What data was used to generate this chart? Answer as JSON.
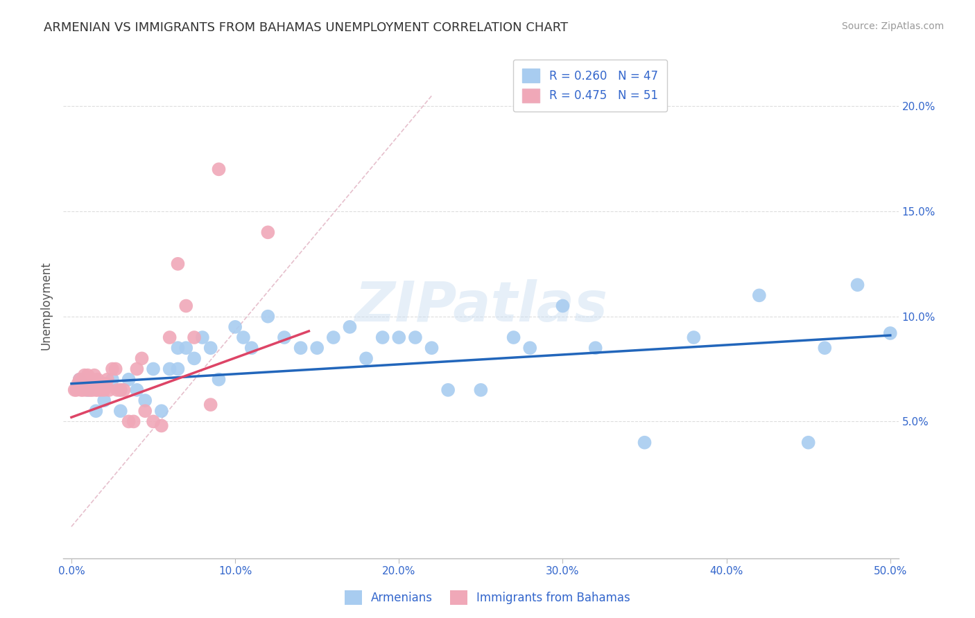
{
  "title": "ARMENIAN VS IMMIGRANTS FROM BAHAMAS UNEMPLOYMENT CORRELATION CHART",
  "source": "Source: ZipAtlas.com",
  "ylabel": "Unemployment",
  "ytick_labels": [
    "5.0%",
    "10.0%",
    "15.0%",
    "20.0%"
  ],
  "ytick_values": [
    0.05,
    0.1,
    0.15,
    0.2
  ],
  "xtick_labels": [
    "0.0%",
    "10.0%",
    "20.0%",
    "30.0%",
    "40.0%",
    "50.0%"
  ],
  "xtick_values": [
    0.0,
    0.1,
    0.2,
    0.3,
    0.4,
    0.5
  ],
  "xlim": [
    -0.005,
    0.505
  ],
  "ylim": [
    -0.015,
    0.225
  ],
  "legend_r1": "R = 0.260",
  "legend_n1": "N = 47",
  "legend_r2": "R = 0.475",
  "legend_n2": "N = 51",
  "color_blue": "#A8CCF0",
  "color_pink": "#F0A8B8",
  "color_blue_line": "#2266BB",
  "color_pink_line": "#DD4466",
  "color_dashed": "#E0B0C0",
  "color_legend_text": "#3366CC",
  "color_title": "#333333",
  "color_source": "#999999",
  "color_axis": "#BBBBBB",
  "color_grid": "#DDDDDD",
  "watermark": "ZIPatlas",
  "blue_line_x": [
    0.0,
    0.5
  ],
  "blue_line_y": [
    0.068,
    0.091
  ],
  "pink_line_x": [
    0.0,
    0.145
  ],
  "pink_line_y": [
    0.052,
    0.093
  ],
  "blue_scatter_x": [
    0.005,
    0.01,
    0.015,
    0.02,
    0.025,
    0.03,
    0.03,
    0.035,
    0.04,
    0.045,
    0.05,
    0.055,
    0.06,
    0.065,
    0.065,
    0.07,
    0.075,
    0.08,
    0.085,
    0.09,
    0.1,
    0.105,
    0.11,
    0.12,
    0.13,
    0.14,
    0.15,
    0.16,
    0.17,
    0.18,
    0.19,
    0.2,
    0.21,
    0.22,
    0.23,
    0.25,
    0.27,
    0.28,
    0.3,
    0.32,
    0.35,
    0.38,
    0.42,
    0.45,
    0.46,
    0.48,
    0.5
  ],
  "blue_scatter_y": [
    0.07,
    0.065,
    0.055,
    0.06,
    0.07,
    0.065,
    0.055,
    0.07,
    0.065,
    0.06,
    0.075,
    0.055,
    0.075,
    0.085,
    0.075,
    0.085,
    0.08,
    0.09,
    0.085,
    0.07,
    0.095,
    0.09,
    0.085,
    0.1,
    0.09,
    0.085,
    0.085,
    0.09,
    0.095,
    0.08,
    0.09,
    0.09,
    0.09,
    0.085,
    0.065,
    0.065,
    0.09,
    0.085,
    0.105,
    0.085,
    0.04,
    0.09,
    0.11,
    0.04,
    0.085,
    0.115,
    0.092
  ],
  "pink_scatter_x": [
    0.002,
    0.003,
    0.004,
    0.005,
    0.006,
    0.007,
    0.007,
    0.008,
    0.008,
    0.009,
    0.009,
    0.01,
    0.01,
    0.011,
    0.011,
    0.012,
    0.012,
    0.013,
    0.013,
    0.014,
    0.014,
    0.015,
    0.015,
    0.016,
    0.016,
    0.017,
    0.018,
    0.019,
    0.02,
    0.021,
    0.022,
    0.023,
    0.025,
    0.027,
    0.028,
    0.03,
    0.032,
    0.035,
    0.038,
    0.04,
    0.043,
    0.045,
    0.05,
    0.055,
    0.06,
    0.065,
    0.07,
    0.075,
    0.085,
    0.09,
    0.12
  ],
  "pink_scatter_y": [
    0.065,
    0.065,
    0.068,
    0.07,
    0.065,
    0.07,
    0.065,
    0.068,
    0.072,
    0.065,
    0.07,
    0.068,
    0.072,
    0.065,
    0.07,
    0.065,
    0.068,
    0.07,
    0.065,
    0.068,
    0.072,
    0.068,
    0.065,
    0.07,
    0.065,
    0.068,
    0.065,
    0.068,
    0.065,
    0.068,
    0.07,
    0.065,
    0.075,
    0.075,
    0.065,
    0.065,
    0.065,
    0.05,
    0.05,
    0.075,
    0.08,
    0.055,
    0.05,
    0.048,
    0.09,
    0.125,
    0.105,
    0.09,
    0.058,
    0.17,
    0.14
  ]
}
